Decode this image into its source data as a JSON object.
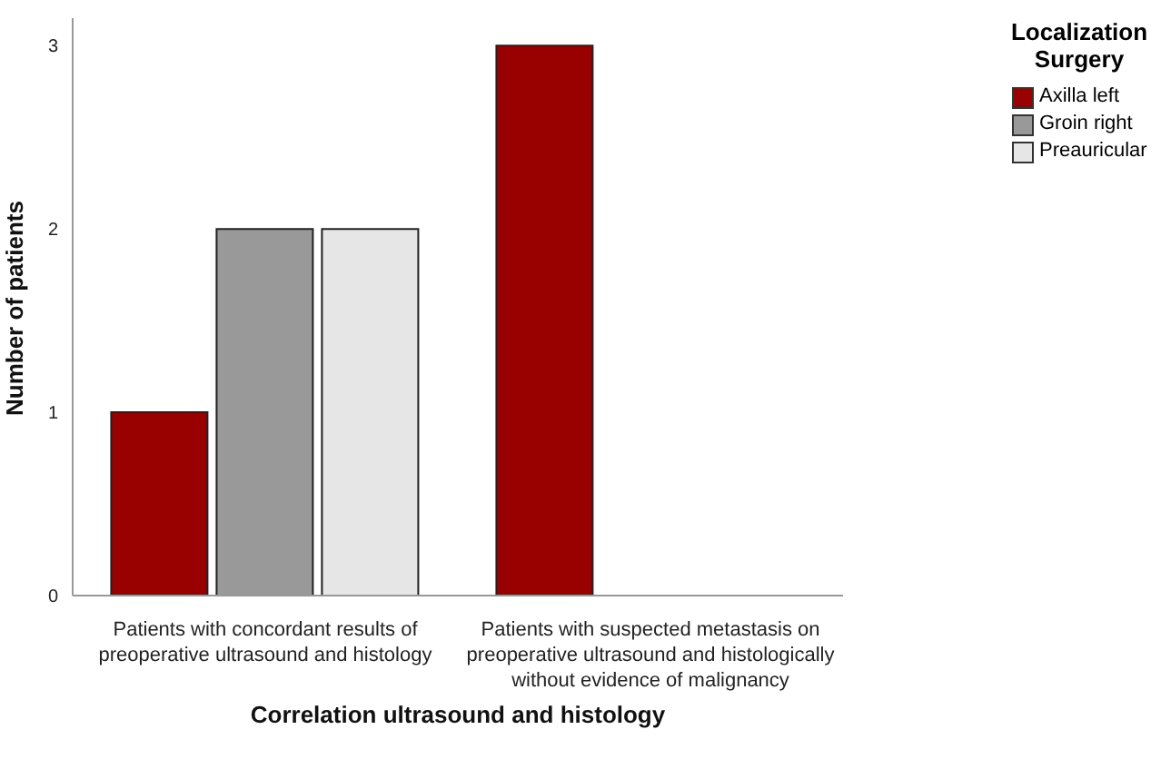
{
  "chart_data": {
    "type": "bar",
    "xlabel": "Correlation ultrasound and histology",
    "ylabel": "Number of patients",
    "legend_title": "Localization Surgery",
    "categories": [
      "Patients with concordant results of preoperative ultrasound and histology",
      "Patients with suspected metastasis on preoperative ultrasound and histologically without evidence of malignancy"
    ],
    "series": [
      {
        "name": "Axilla left",
        "color": "#990000",
        "values": [
          1,
          3
        ]
      },
      {
        "name": "Groin right",
        "color": "#999999",
        "values": [
          2,
          null
        ]
      },
      {
        "name": "Preauricular",
        "color": "#e6e6e6",
        "values": [
          2,
          null
        ]
      }
    ],
    "ylim": [
      0,
      3.15
    ],
    "yticks": [
      0,
      1,
      2,
      3
    ],
    "grid": false,
    "legend": "top right"
  }
}
